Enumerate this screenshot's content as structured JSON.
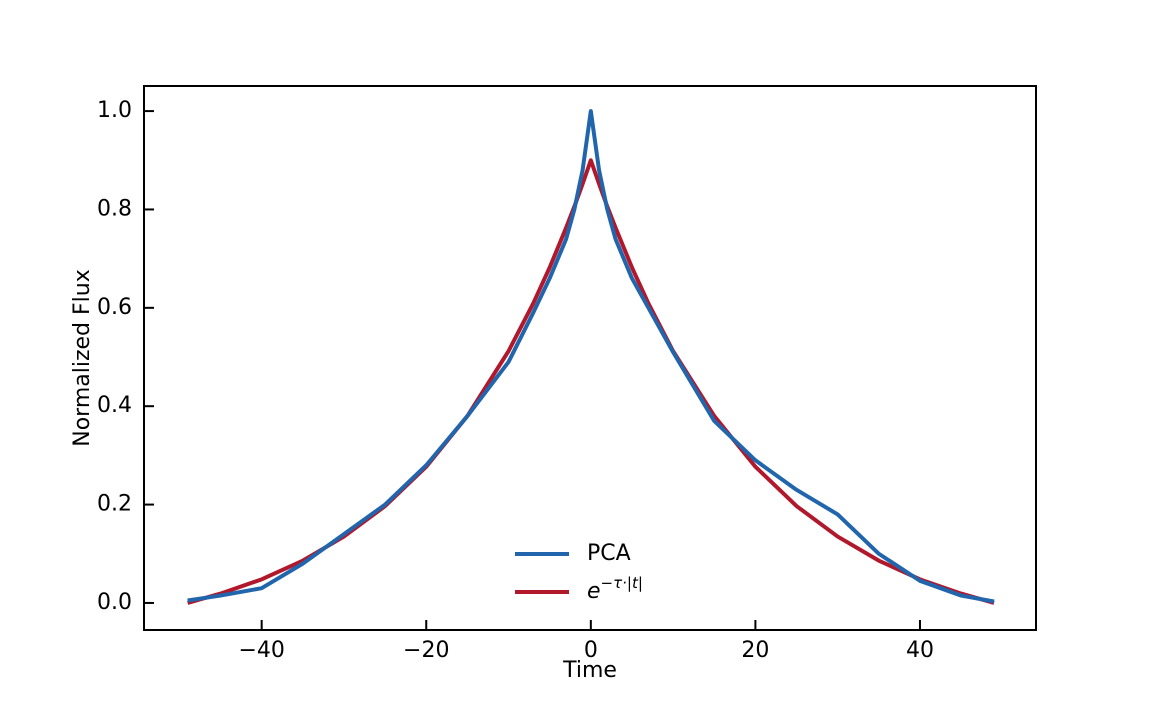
{
  "chart_data": {
    "type": "line",
    "xlabel": "Time",
    "ylabel": "Normalized Flux",
    "x": [
      -49,
      -45,
      -40,
      -35,
      -30,
      -25,
      -20,
      -15,
      -10,
      -7,
      -5,
      -3,
      -2,
      -1,
      0,
      1,
      2,
      3,
      5,
      7,
      10,
      15,
      20,
      25,
      30,
      35,
      40,
      45,
      49
    ],
    "series": [
      {
        "name": "PCA",
        "color": "#2166ac",
        "values": [
          0.005,
          0.015,
          0.03,
          0.08,
          0.14,
          0.2,
          0.28,
          0.38,
          0.49,
          0.59,
          0.66,
          0.74,
          0.8,
          0.88,
          1.0,
          0.88,
          0.8,
          0.74,
          0.66,
          0.6,
          0.51,
          0.37,
          0.29,
          0.23,
          0.18,
          0.1,
          0.045,
          0.015,
          0.003
        ]
      },
      {
        "name": "e−τ·|t|",
        "color": "#b2182b",
        "values": [
          0,
          0.019,
          0.048,
          0.086,
          0.135,
          0.197,
          0.277,
          0.38,
          0.512,
          0.609,
          0.682,
          0.763,
          0.806,
          0.852,
          0.9,
          0.852,
          0.806,
          0.763,
          0.682,
          0.609,
          0.512,
          0.38,
          0.277,
          0.197,
          0.135,
          0.086,
          0.048,
          0.019,
          0
        ]
      }
    ],
    "xlim": [
      -54.3,
      54.1
    ],
    "ylim": [
      -0.055,
      1.051
    ],
    "xticks": [
      {
        "value": -40,
        "label": "−40"
      },
      {
        "value": -20,
        "label": "−20"
      },
      0,
      20,
      40
    ],
    "yticks": [
      {
        "value": 0,
        "label": "0.0"
      },
      {
        "value": 0.2,
        "label": "0.2"
      },
      {
        "value": 0.4,
        "label": "0.4"
      },
      {
        "value": 0.6,
        "label": "0.6"
      },
      {
        "value": 0.8,
        "label": "0.8"
      },
      {
        "value": 1.0,
        "label": "1.0"
      }
    ],
    "legend": "lower center"
  }
}
